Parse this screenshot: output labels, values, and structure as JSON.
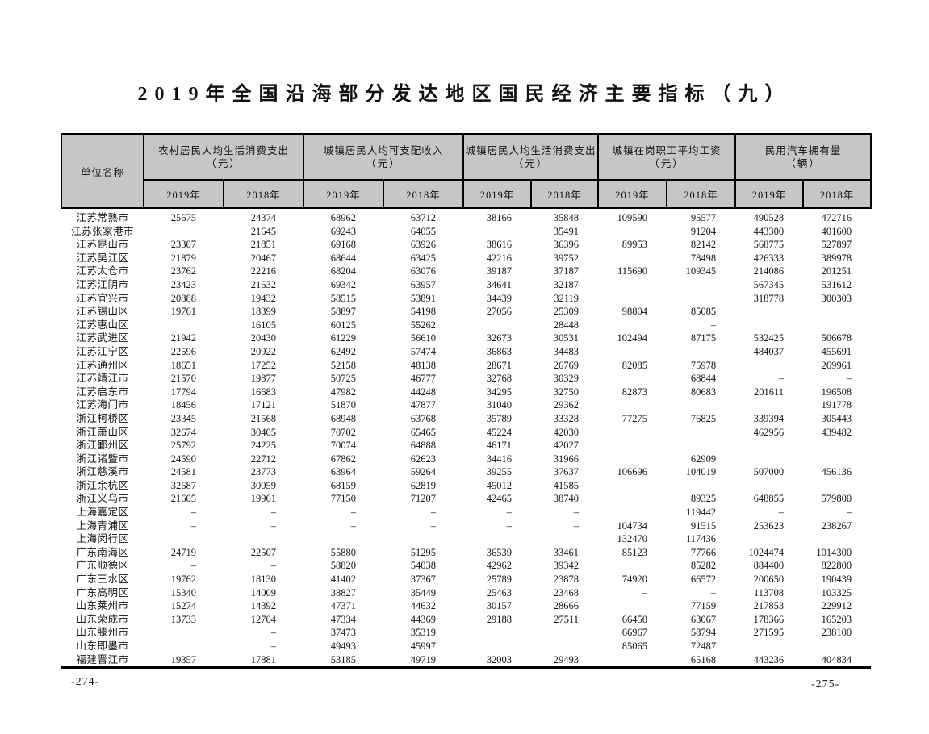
{
  "page": {
    "title": "2019年全国沿海部分发达地区国民经济主要指标（九）",
    "footer_left": "-274-",
    "footer_right": "-275-"
  },
  "colors": {
    "header_bg": "#c6c7c4",
    "border": "#000000"
  },
  "table": {
    "corner_header": "单位名称",
    "year_headers": [
      "2019年",
      "2018年"
    ],
    "groups": [
      {
        "label": "农村居民人均生活消费支出",
        "unit": "（元）"
      },
      {
        "label": "城镇居民人均可支配收入",
        "unit": "（元）"
      },
      {
        "label": "城镇居民人均生活消费支出",
        "unit": "（元）"
      },
      {
        "label": "城镇在岗职工平均工资",
        "unit": "（元）"
      },
      {
        "label": "民用汽车拥有量",
        "unit": "（辆）"
      }
    ],
    "rows": [
      {
        "name": "江苏常熟市",
        "values": [
          "25675",
          "24374",
          "68962",
          "63712",
          "38166",
          "35848",
          "109590",
          "95577",
          "490528",
          "472716"
        ]
      },
      {
        "name": "江苏张家港市",
        "values": [
          "",
          "21645",
          "69243",
          "64055",
          "",
          "35491",
          "",
          "91204",
          "443300",
          "401600"
        ]
      },
      {
        "name": "江苏昆山市",
        "values": [
          "23307",
          "21851",
          "69168",
          "63926",
          "38616",
          "36396",
          "89953",
          "82142",
          "568775",
          "527897"
        ]
      },
      {
        "name": "江苏吴江区",
        "values": [
          "21879",
          "20467",
          "68644",
          "63425",
          "42216",
          "39752",
          "",
          "78498",
          "426333",
          "389978"
        ]
      },
      {
        "name": "江苏太仓市",
        "values": [
          "23762",
          "22216",
          "68204",
          "63076",
          "39187",
          "37187",
          "115690",
          "109345",
          "214086",
          "201251"
        ]
      },
      {
        "name": "江苏江阴市",
        "values": [
          "23423",
          "21632",
          "69342",
          "63957",
          "34641",
          "32187",
          "",
          "",
          "567345",
          "531612"
        ]
      },
      {
        "name": "江苏宜兴市",
        "values": [
          "20888",
          "19432",
          "58515",
          "53891",
          "34439",
          "32119",
          "",
          "",
          "318778",
          "300303"
        ]
      },
      {
        "name": "江苏锡山区",
        "values": [
          "19761",
          "18399",
          "58897",
          "54198",
          "27056",
          "25309",
          "98804",
          "85085",
          "",
          ""
        ]
      },
      {
        "name": "江苏惠山区",
        "values": [
          "",
          "16105",
          "60125",
          "55262",
          "",
          "28448",
          "",
          "–",
          "",
          ""
        ]
      },
      {
        "name": "江苏武进区",
        "values": [
          "21942",
          "20430",
          "61229",
          "56610",
          "32673",
          "30531",
          "102494",
          "87175",
          "532425",
          "506678"
        ]
      },
      {
        "name": "江苏江宁区",
        "values": [
          "22596",
          "20922",
          "62492",
          "57474",
          "36863",
          "34483",
          "",
          "",
          "484037",
          "455691"
        ]
      },
      {
        "name": "江苏通州区",
        "values": [
          "18651",
          "17252",
          "52158",
          "48138",
          "28671",
          "26769",
          "82085",
          "75978",
          "",
          "269961"
        ]
      },
      {
        "name": "江苏靖江市",
        "values": [
          "21570",
          "19877",
          "50725",
          "46777",
          "32768",
          "30329",
          "",
          "68844",
          "–",
          "–"
        ]
      },
      {
        "name": "江苏启东市",
        "values": [
          "17794",
          "16683",
          "47982",
          "44248",
          "34295",
          "32750",
          "82873",
          "80683",
          "201611",
          "196508"
        ]
      },
      {
        "name": "江苏海门市",
        "values": [
          "18456",
          "17121",
          "51870",
          "47877",
          "31040",
          "29362",
          "",
          "",
          "",
          "191778"
        ]
      },
      {
        "name": "浙江柯桥区",
        "values": [
          "23345",
          "21568",
          "68948",
          "63768",
          "35789",
          "33328",
          "77275",
          "76825",
          "339394",
          "305443"
        ]
      },
      {
        "name": "浙江萧山区",
        "values": [
          "32674",
          "30405",
          "70702",
          "65465",
          "45224",
          "42030",
          "",
          "",
          "462956",
          "439482"
        ]
      },
      {
        "name": "浙江鄞州区",
        "values": [
          "25792",
          "24225",
          "70074",
          "64888",
          "46171",
          "42027",
          "",
          "",
          "",
          ""
        ]
      },
      {
        "name": "浙江诸暨市",
        "values": [
          "24590",
          "22712",
          "67862",
          "62623",
          "34416",
          "31966",
          "",
          "62909",
          "",
          ""
        ]
      },
      {
        "name": "浙江慈溪市",
        "values": [
          "24581",
          "23773",
          "63964",
          "59264",
          "39255",
          "37637",
          "106696",
          "104019",
          "507000",
          "456136"
        ]
      },
      {
        "name": "浙江余杭区",
        "values": [
          "32687",
          "30059",
          "68159",
          "62819",
          "45012",
          "41585",
          "",
          "",
          "",
          ""
        ]
      },
      {
        "name": "浙江义乌市",
        "values": [
          "21605",
          "19961",
          "77150",
          "71207",
          "42465",
          "38740",
          "",
          "89325",
          "648855",
          "579800"
        ]
      },
      {
        "name": "上海嘉定区",
        "values": [
          "–",
          "–",
          "–",
          "–",
          "–",
          "–",
          "",
          "119442",
          "–",
          "–"
        ]
      },
      {
        "name": "上海青浦区",
        "values": [
          "–",
          "–",
          "–",
          "–",
          "–",
          "–",
          "104734",
          "91515",
          "253623",
          "238267"
        ]
      },
      {
        "name": "上海闵行区",
        "values": [
          "",
          "",
          "",
          "",
          "",
          "",
          "132470",
          "117436",
          "",
          ""
        ]
      },
      {
        "name": "广东南海区",
        "values": [
          "24719",
          "22507",
          "55880",
          "51295",
          "36539",
          "33461",
          "85123",
          "77766",
          "1024474",
          "1014300"
        ]
      },
      {
        "name": "广东顺德区",
        "values": [
          "–",
          "–",
          "58820",
          "54038",
          "42962",
          "39342",
          "",
          "85282",
          "884400",
          "822800"
        ]
      },
      {
        "name": "广东三水区",
        "values": [
          "19762",
          "18130",
          "41402",
          "37367",
          "25789",
          "23878",
          "74920",
          "66572",
          "200650",
          "190439"
        ]
      },
      {
        "name": "广东高明区",
        "values": [
          "15340",
          "14009",
          "38827",
          "35449",
          "25463",
          "23468",
          "–",
          "–",
          "113708",
          "103325"
        ]
      },
      {
        "name": "山东莱州市",
        "values": [
          "15274",
          "14392",
          "47371",
          "44632",
          "30157",
          "28666",
          "",
          "77159",
          "217853",
          "229912"
        ]
      },
      {
        "name": "山东荣成市",
        "values": [
          "13733",
          "12704",
          "47334",
          "44369",
          "29188",
          "27511",
          "66450",
          "63067",
          "178366",
          "165203"
        ]
      },
      {
        "name": "山东滕州市",
        "values": [
          "",
          "–",
          "37473",
          "35319",
          "",
          "",
          "66967",
          "58794",
          "271595",
          "238100"
        ]
      },
      {
        "name": "山东即墨市",
        "values": [
          "",
          "–",
          "49493",
          "45997",
          "",
          "",
          "85065",
          "72487",
          "",
          ""
        ]
      },
      {
        "name": "福建晋江市",
        "values": [
          "19357",
          "17881",
          "53185",
          "49719",
          "32003",
          "29493",
          "",
          "65168",
          "443236",
          "404834"
        ]
      }
    ]
  }
}
